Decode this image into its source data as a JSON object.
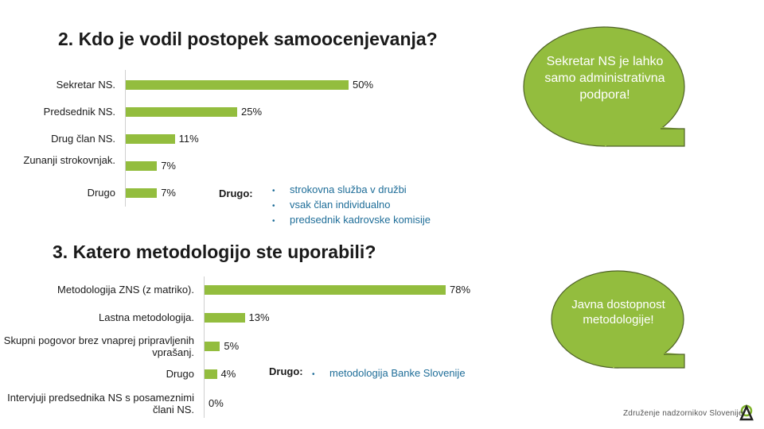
{
  "chart_data": [
    {
      "type": "bar",
      "orientation": "horizontal",
      "title": "2. Kdo je vodil postopek samoocenjevanja?",
      "categories": [
        "Sekretar NS.",
        "Predsednik NS.",
        "Drug član NS.",
        "Zunanji strokovnjak.",
        "Drugo"
      ],
      "values": [
        50,
        25,
        11,
        7,
        7
      ],
      "labels": [
        "50%",
        "25%",
        "11%",
        "7%",
        "7%"
      ],
      "unit": "%",
      "color": "#93bd3e",
      "other_label": "Drugo:",
      "other_items": [
        "strokovna služba v družbi",
        "vsak član individualno",
        "predsednik kadrovske komisije"
      ]
    },
    {
      "type": "bar",
      "orientation": "horizontal",
      "title": "3. Katero metodologijo ste uporabili?",
      "categories": [
        "Metodologija ZNS (z matriko).",
        "Lastna metodologija.",
        "Skupni pogovor brez vnaprej pripravljenih vprašanj.",
        "Drugo",
        "Intervjuji predsednika NS s posameznimi člani NS."
      ],
      "values": [
        78,
        13,
        5,
        4,
        0
      ],
      "labels": [
        "78%",
        "13%",
        "5%",
        "4%",
        "0%"
      ],
      "unit": "%",
      "color": "#93bd3e",
      "other_label": "Drugo:",
      "other_items": [
        "metodologija Banke Slovenije"
      ]
    }
  ],
  "bubbles": [
    "Sekretar NS je lahko samo administrativna podpora!",
    "Javna dostopnost metodologije!"
  ],
  "footer": "Združenje nadzornikov Slovenije",
  "colors": {
    "bar": "#93bd3e",
    "bubble": "#93bd3e",
    "bubble_border": "#4f6228",
    "note": "#1e6d98"
  }
}
